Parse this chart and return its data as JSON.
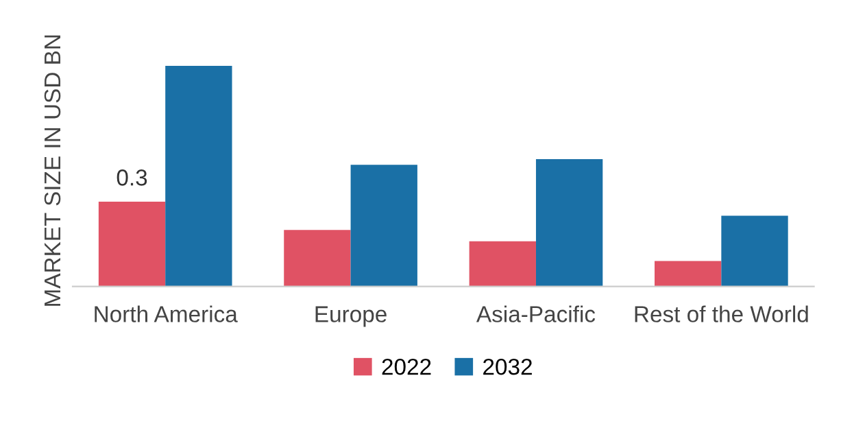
{
  "chart_data": {
    "type": "bar",
    "ylabel": "MARKET SIZE IN USD BN",
    "categories": [
      "North America",
      "Europe",
      "Asia-Pacific",
      "Rest of the World"
    ],
    "series": [
      {
        "name": "2022",
        "color": "#e05264",
        "values": [
          0.3,
          0.2,
          0.16,
          0.09
        ],
        "value_labels": [
          "0.3",
          null,
          null,
          null
        ]
      },
      {
        "name": "2032",
        "color": "#1a70a6",
        "values": [
          0.78,
          0.43,
          0.45,
          0.25
        ]
      }
    ],
    "tick_labels": "x",
    "legend": "bottom",
    "grid": false
  }
}
